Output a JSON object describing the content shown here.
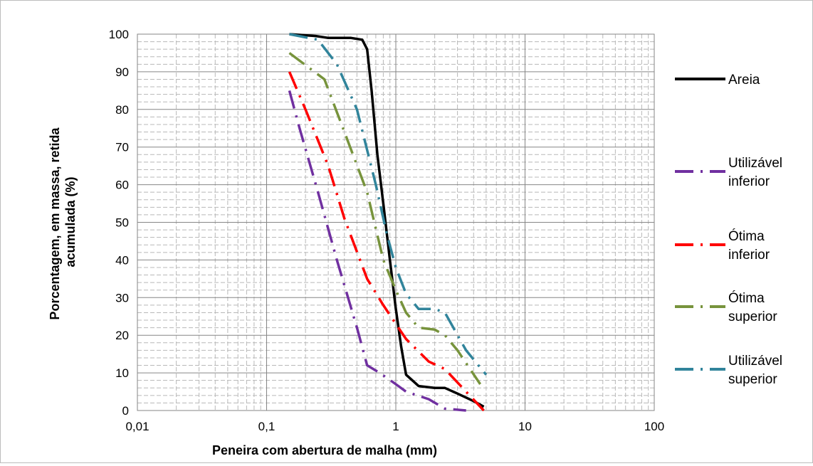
{
  "chart_data": {
    "type": "line",
    "title": "",
    "xlabel": "Peneira com abertura de malha (mm)",
    "ylabel_lines": [
      "Porcentagem, em massa, retida",
      "acumulada (%)"
    ],
    "x_scale": "log",
    "xlim": [
      0.01,
      100
    ],
    "ylim": [
      0,
      100
    ],
    "x_ticks": [
      {
        "value": 0.01,
        "label": "0,01"
      },
      {
        "value": 0.1,
        "label": "0,1"
      },
      {
        "value": 1,
        "label": "1"
      },
      {
        "value": 10,
        "label": "10"
      },
      {
        "value": 100,
        "label": "100"
      }
    ],
    "y_ticks": [
      0,
      10,
      20,
      30,
      40,
      50,
      60,
      70,
      80,
      90,
      100
    ],
    "grid": true,
    "legend_position": "right",
    "series": [
      {
        "name": "Areia",
        "legend_lines": [
          "Areia"
        ],
        "color": "#000000",
        "dash": "solid",
        "points": [
          [
            0.15,
            100
          ],
          [
            0.24,
            99.5
          ],
          [
            0.3,
            99
          ],
          [
            0.45,
            99
          ],
          [
            0.55,
            98.5
          ],
          [
            0.6,
            96
          ],
          [
            0.65,
            85
          ],
          [
            0.72,
            68
          ],
          [
            0.8,
            55
          ],
          [
            0.9,
            40
          ],
          [
            1.0,
            27
          ],
          [
            1.1,
            17
          ],
          [
            1.2,
            9.5
          ],
          [
            1.5,
            6.5
          ],
          [
            2.0,
            6
          ],
          [
            2.4,
            6
          ],
          [
            3.0,
            4.5
          ],
          [
            4.0,
            2.5
          ],
          [
            4.8,
            1
          ]
        ]
      },
      {
        "name": "Utilizável inferior",
        "legend_lines": [
          "Utilizável",
          "inferior"
        ],
        "color": "#7030A0",
        "dash": "dashdot",
        "points": [
          [
            0.15,
            85
          ],
          [
            0.18,
            75
          ],
          [
            0.25,
            58
          ],
          [
            0.35,
            40
          ],
          [
            0.5,
            22
          ],
          [
            0.6,
            12
          ],
          [
            0.75,
            10
          ],
          [
            1.0,
            7
          ],
          [
            1.2,
            5
          ],
          [
            1.8,
            3
          ],
          [
            2.4,
            0.5
          ],
          [
            3.5,
            0
          ]
        ]
      },
      {
        "name": "Ótima inferior",
        "legend_lines": [
          "Ótima",
          "inferior"
        ],
        "color": "#FF0000",
        "dash": "dashdot",
        "points": [
          [
            0.15,
            90
          ],
          [
            0.2,
            80
          ],
          [
            0.3,
            65
          ],
          [
            0.4,
            51
          ],
          [
            0.6,
            35
          ],
          [
            0.8,
            28
          ],
          [
            1.0,
            23
          ],
          [
            1.2,
            19
          ],
          [
            1.8,
            13
          ],
          [
            2.4,
            11
          ],
          [
            3.5,
            5
          ],
          [
            4.8,
            0
          ]
        ]
      },
      {
        "name": "Ótima superior",
        "legend_lines": [
          "Ótima",
          "superior"
        ],
        "color": "#77933C",
        "dash": "dashdot",
        "points": [
          [
            0.15,
            95
          ],
          [
            0.28,
            88
          ],
          [
            0.4,
            74
          ],
          [
            0.6,
            58
          ],
          [
            0.8,
            40
          ],
          [
            1.0,
            32
          ],
          [
            1.2,
            26
          ],
          [
            1.5,
            22
          ],
          [
            2.0,
            21.5
          ],
          [
            2.4,
            20
          ],
          [
            3.0,
            16
          ],
          [
            4.5,
            7
          ]
        ]
      },
      {
        "name": "Utilizável superior",
        "legend_lines": [
          "Utilizável",
          "superior"
        ],
        "color": "#31849B",
        "dash": "dashdot",
        "points": [
          [
            0.15,
            100
          ],
          [
            0.25,
            98.5
          ],
          [
            0.35,
            92
          ],
          [
            0.5,
            80
          ],
          [
            0.7,
            60
          ],
          [
            0.85,
            47
          ],
          [
            1.0,
            38
          ],
          [
            1.2,
            31
          ],
          [
            1.5,
            27
          ],
          [
            2.0,
            27
          ],
          [
            2.4,
            26
          ],
          [
            3.5,
            16
          ],
          [
            5.0,
            9.5
          ]
        ]
      }
    ]
  }
}
